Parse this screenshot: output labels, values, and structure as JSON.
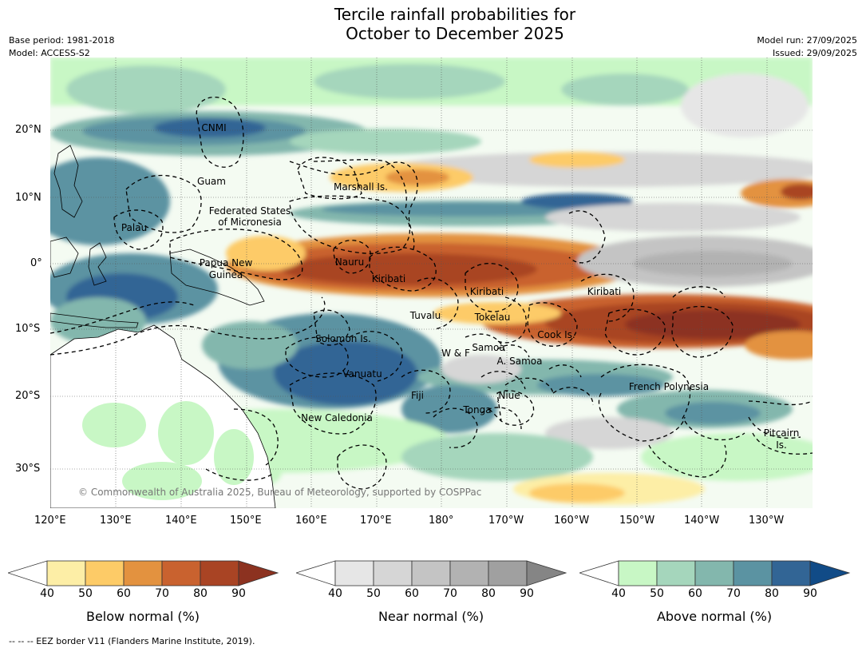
{
  "title": {
    "line1": "Tercile rainfall probabilities for",
    "line2": "October to December 2025"
  },
  "meta": {
    "base_period": "Base period: 1981-2018",
    "model": "Model: ACCESS-S2",
    "model_run": "Model run: 27/09/2025",
    "issued": "Issued: 29/09/2025"
  },
  "map": {
    "copyright": "© Commonwealth of Australia 2025, Bureau of Meteorology, supported by COSPPac",
    "lat_ticks": [
      "20°N",
      "10°N",
      "0°",
      "10°S",
      "20°S",
      "30°S"
    ],
    "lon_ticks": [
      "120°E",
      "130°E",
      "140°E",
      "150°E",
      "160°E",
      "170°E",
      "180°",
      "170°W",
      "160°W",
      "150°W",
      "140°W",
      "130°W"
    ],
    "region_labels": [
      {
        "text": "CNMI"
      },
      {
        "text": "Guam"
      },
      {
        "text": "Marshall Is."
      },
      {
        "text": "Federated States"
      },
      {
        "text": "of Micronesia"
      },
      {
        "text": "Palau"
      },
      {
        "text": "Papua New"
      },
      {
        "text": "Guinea"
      },
      {
        "text": "Nauru"
      },
      {
        "text": "Kiribati"
      },
      {
        "text": "Kiribati"
      },
      {
        "text": "Kiribati"
      },
      {
        "text": "Tuvalu"
      },
      {
        "text": "Tokelau"
      },
      {
        "text": "Cook Is."
      },
      {
        "text": "Solomon Is."
      },
      {
        "text": "W & F"
      },
      {
        "text": "Samoa"
      },
      {
        "text": "A. Samoa"
      },
      {
        "text": "Vanuatu"
      },
      {
        "text": "Fiji"
      },
      {
        "text": "Niue"
      },
      {
        "text": "French Polynesia"
      },
      {
        "text": "Tonga"
      },
      {
        "text": "New Caledonia"
      },
      {
        "text": "Pitcairn"
      },
      {
        "text": "Is."
      }
    ]
  },
  "colorbars": [
    {
      "title": "Below normal (%)",
      "ticks": [
        "40",
        "50",
        "60",
        "70",
        "80",
        "90"
      ],
      "colors": [
        "#ffffff",
        "#fdeea6",
        "#fdcb67",
        "#e3923f",
        "#c9622f",
        "#a94424",
        "#8c3220"
      ]
    },
    {
      "title": "Near normal (%)",
      "ticks": [
        "40",
        "50",
        "60",
        "70",
        "80",
        "90"
      ],
      "colors": [
        "#ffffff",
        "#e6e6e6",
        "#d6d6d6",
        "#c4c4c4",
        "#b2b2b2",
        "#a0a0a0",
        "#858585"
      ]
    },
    {
      "title": "Above normal (%)",
      "ticks": [
        "40",
        "50",
        "60",
        "70",
        "80",
        "90"
      ],
      "colors": [
        "#ffffff",
        "#c8f7c5",
        "#a5d6bc",
        "#83b7ad",
        "#5b93a2",
        "#326595",
        "#114b87"
      ]
    }
  ],
  "footer": "--  --  -- EEZ border V11 (Flanders Marine Institute, 2019)."
}
